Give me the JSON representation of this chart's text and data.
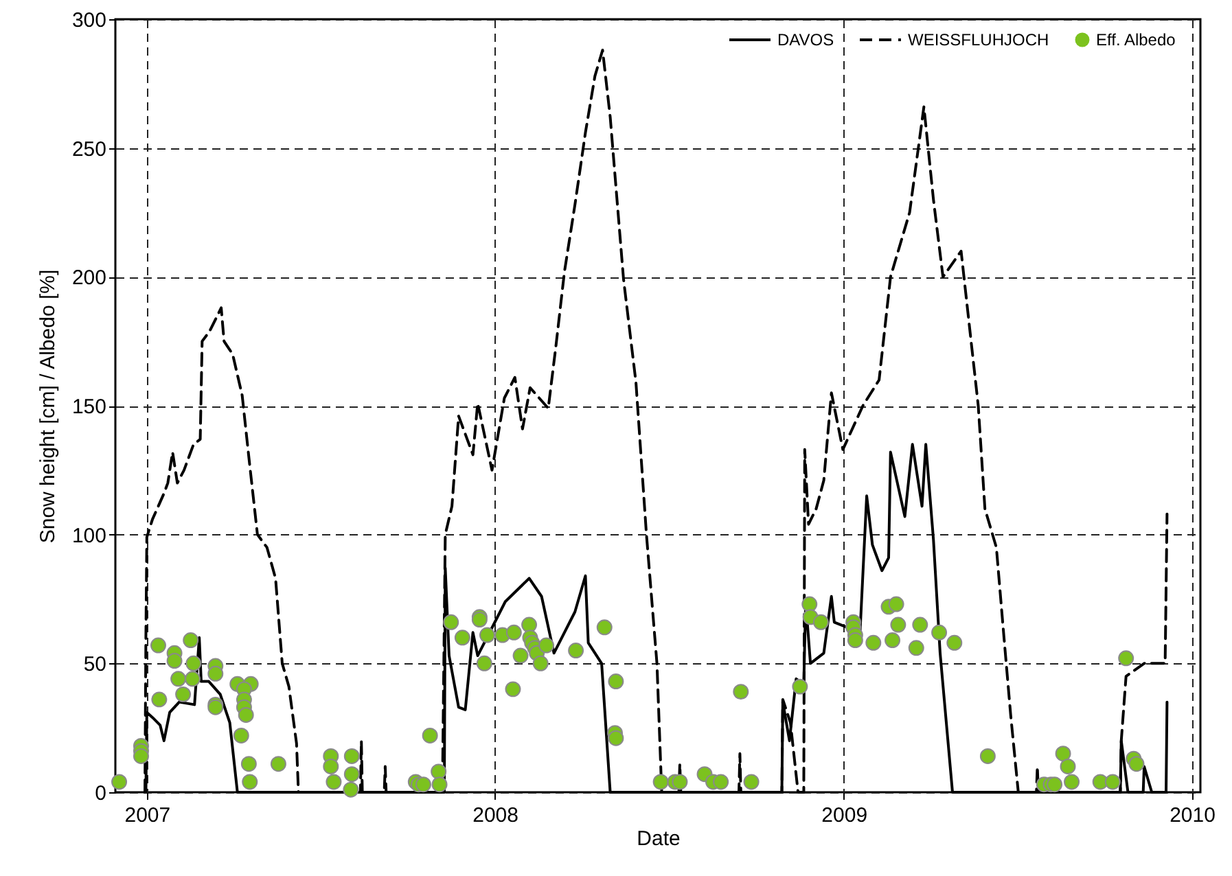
{
  "chart_data": {
    "type": "line",
    "xlabel": "Date",
    "ylabel": "Snow height [cm] / Albedo [%]",
    "xlim": [
      "2006-11-29",
      "2010-01-10"
    ],
    "ylim": [
      0,
      300
    ],
    "xticks": [
      {
        "value": "2007-01-01",
        "label": "2007"
      },
      {
        "value": "2008-01-01",
        "label": "2008"
      },
      {
        "value": "2009-01-01",
        "label": "2009"
      },
      {
        "value": "2010-01-01",
        "label": "2010"
      }
    ],
    "yticks": [
      0,
      50,
      100,
      150,
      200,
      250,
      300
    ],
    "grid": true,
    "legend": "top right",
    "series": [
      {
        "name": "DAVOS",
        "line_style": "solid",
        "color": "#000000",
        "x": [
          "2006-12-31",
          "2007-01-01",
          "2007-01-07",
          "2007-01-15",
          "2007-01-19",
          "2007-01-25",
          "2007-02-04",
          "2007-02-20",
          "2007-02-25",
          "2007-02-27",
          "2007-03-07",
          "2007-03-19",
          "2007-03-29",
          "2007-04-06",
          "2007-11-09",
          "2007-11-10",
          "2007-11-14",
          "2007-11-24",
          "2007-12-01",
          "2007-12-09",
          "2007-12-14",
          "2008-01-01",
          "2008-01-12",
          "2008-02-06",
          "2008-02-19",
          "2008-03-03",
          "2008-03-25",
          "2008-04-05",
          "2008-04-08",
          "2008-04-22",
          "2008-05-01",
          "2008-10-28",
          "2008-10-29",
          "2008-11-05",
          "2008-11-12",
          "2008-11-20",
          "2008-11-22",
          "2008-11-27",
          "2008-12-11",
          "2008-12-19",
          "2008-12-22",
          "2009-01-18",
          "2009-01-25",
          "2009-01-31",
          "2009-02-10",
          "2009-02-17",
          "2009-02-19",
          "2009-03-06",
          "2009-03-14",
          "2009-03-24",
          "2009-03-28",
          "2009-04-05",
          "2009-04-12",
          "2009-04-25",
          "2009-10-18",
          "2009-10-19",
          "2009-10-26",
          "2009-11-11",
          "2009-11-12",
          "2009-11-20",
          "2009-12-05",
          "2009-12-06"
        ],
        "values": [
          0,
          31,
          29,
          26,
          20,
          31,
          35,
          34,
          60,
          43,
          43,
          38,
          27,
          0,
          0,
          87,
          53,
          33,
          32,
          62,
          53,
          66,
          74,
          83,
          76,
          54,
          70,
          84,
          58,
          50,
          0,
          0,
          35,
          20,
          44,
          42,
          74,
          50,
          54,
          76,
          66,
          62,
          115,
          96,
          86,
          91,
          132,
          107,
          135,
          111,
          135,
          98,
          54,
          0,
          0,
          20,
          0,
          0,
          10,
          0,
          0,
          35
        ]
      },
      {
        "name": "WEISSFLUHJOCH",
        "line_style": "dashed",
        "color": "#000000",
        "x": [
          "2006-12-30",
          "2006-12-31",
          "2007-01-01",
          "2007-01-07",
          "2007-01-19",
          "2007-01-23",
          "2007-01-28",
          "2007-02-02",
          "2007-02-09",
          "2007-02-19",
          "2007-02-26",
          "2007-02-28",
          "2007-03-08",
          "2007-03-20",
          "2007-03-23",
          "2007-04-01",
          "2007-04-11",
          "2007-04-18",
          "2007-04-27",
          "2007-05-07",
          "2007-05-16",
          "2007-05-23",
          "2007-05-30",
          "2007-06-07",
          "2007-06-09",
          "2007-08-13",
          "2007-08-14",
          "2007-08-15",
          "2007-09-07",
          "2007-09-08",
          "2007-09-09",
          "2007-11-07",
          "2007-11-10",
          "2007-11-17",
          "2007-11-24",
          "2007-12-09",
          "2007-12-14",
          "2007-12-29",
          "2008-01-11",
          "2008-01-22",
          "2008-01-30",
          "2008-02-07",
          "2008-02-26",
          "2008-03-05",
          "2008-03-14",
          "2008-03-25",
          "2008-04-05",
          "2008-04-15",
          "2008-04-23",
          "2008-05-01",
          "2008-05-15",
          "2008-05-28",
          "2008-06-08",
          "2008-06-19",
          "2008-06-24",
          "2008-07-12",
          "2008-07-13",
          "2008-07-14",
          "2008-09-13",
          "2008-09-14",
          "2008-09-15",
          "2008-10-28",
          "2008-10-29",
          "2008-11-06",
          "2008-11-14",
          "2008-11-20",
          "2008-11-21",
          "2008-11-25",
          "2008-12-03",
          "2008-12-11",
          "2008-12-19",
          "2008-12-31",
          "2009-01-21",
          "2009-02-07",
          "2009-02-19",
          "2009-03-11",
          "2009-03-26",
          "2009-04-05",
          "2009-04-15",
          "2009-05-04",
          "2009-05-22",
          "2009-05-29",
          "2009-06-10",
          "2009-06-18",
          "2009-06-25",
          "2009-07-03",
          "2009-07-22",
          "2009-07-23",
          "2009-07-24",
          "2009-10-18",
          "2009-10-19",
          "2009-10-24",
          "2009-11-12",
          "2009-12-04",
          "2009-12-06"
        ],
        "values": [
          0,
          60,
          99,
          106,
          116,
          120,
          132,
          120,
          125,
          135,
          137,
          175,
          179,
          188,
          175,
          170,
          154,
          130,
          100,
          95,
          83,
          50,
          41,
          19,
          0,
          0,
          20,
          0,
          0,
          10,
          0,
          0,
          100,
          111,
          146,
          131,
          151,
          125,
          153,
          161,
          141,
          157,
          149,
          173,
          202,
          228,
          256,
          278,
          288,
          262,
          199,
          159,
          100,
          50,
          0,
          0,
          11,
          0,
          0,
          15,
          0,
          0,
          36,
          27,
          0,
          0,
          133,
          104,
          110,
          121,
          155,
          133,
          150,
          160,
          200,
          225,
          266,
          230,
          200,
          210,
          150,
          110,
          95,
          60,
          30,
          0,
          0,
          10,
          0,
          0,
          20,
          45,
          50,
          50,
          108
        ]
      },
      {
        "name": "Eff. Albedo",
        "type": "scatter",
        "marker": "circle",
        "color": "#7cc21e",
        "x": [
          "2006-12-03",
          "2006-12-26",
          "2006-12-26",
          "2006-12-26",
          "2007-01-13",
          "2007-01-14",
          "2007-01-30",
          "2007-01-30",
          "2007-02-03",
          "2007-02-08",
          "2007-02-16",
          "2007-02-19",
          "2007-02-18",
          "2007-03-14",
          "2007-03-14",
          "2007-03-14",
          "2007-03-14",
          "2007-04-06",
          "2007-04-20",
          "2007-04-13",
          "2007-04-13",
          "2007-04-13",
          "2007-04-15",
          "2007-04-10",
          "2007-04-18",
          "2007-04-19",
          "2007-05-19",
          "2007-07-13",
          "2007-07-13",
          "2007-07-16",
          "2007-08-04",
          "2007-08-04",
          "2007-08-03",
          "2007-10-10",
          "2007-10-13",
          "2007-10-18",
          "2007-10-25",
          "2007-11-03",
          "2007-11-04",
          "2007-11-16",
          "2007-11-28",
          "2007-12-16",
          "2007-12-16",
          "2007-12-21",
          "2007-12-24",
          "2008-01-09",
          "2008-01-20",
          "2008-01-21",
          "2008-01-28",
          "2008-02-06",
          "2008-02-07",
          "2008-02-09",
          "2008-02-12",
          "2008-02-14",
          "2008-02-18",
          "2008-02-24",
          "2008-03-26",
          "2008-04-25",
          "2008-05-07",
          "2008-05-06",
          "2008-05-07",
          "2008-06-23",
          "2008-07-08",
          "2008-07-13",
          "2008-08-08",
          "2008-08-17",
          "2008-08-25",
          "2008-09-15",
          "2008-09-26",
          "2008-11-16",
          "2008-11-26",
          "2008-11-27",
          "2008-12-08",
          "2009-01-11",
          "2009-01-11",
          "2009-01-13",
          "2009-01-13",
          "2009-02-01",
          "2009-02-17",
          "2009-02-25",
          "2009-02-21",
          "2009-02-27",
          "2009-03-18",
          "2009-03-22",
          "2009-04-11",
          "2009-04-27",
          "2009-06-01",
          "2009-07-30",
          "2009-08-06",
          "2009-08-10",
          "2009-08-19",
          "2009-08-24",
          "2009-08-28",
          "2009-09-27",
          "2009-10-10",
          "2009-10-24",
          "2009-11-01",
          "2009-11-04"
        ],
        "values": [
          4,
          18,
          16,
          14,
          57,
          36,
          54,
          51,
          44,
          38,
          59,
          50,
          44,
          49,
          46,
          34,
          33,
          42,
          42,
          40,
          36,
          33,
          30,
          22,
          11,
          4,
          11,
          14,
          10,
          4,
          14,
          7,
          1,
          4,
          3,
          3,
          22,
          8,
          3,
          66,
          60,
          68,
          67,
          50,
          61,
          61,
          40,
          62,
          53,
          65,
          60,
          58,
          56,
          54,
          50,
          57,
          55,
          64,
          43,
          23,
          21,
          4,
          4,
          4,
          7,
          4,
          4,
          39,
          4,
          41,
          73,
          68,
          66,
          66,
          64,
          61,
          59,
          58,
          72,
          73,
          59,
          65,
          56,
          65,
          62,
          58,
          14,
          3,
          3,
          3,
          15,
          10,
          4,
          4,
          4,
          52,
          13,
          11
        ]
      }
    ]
  }
}
